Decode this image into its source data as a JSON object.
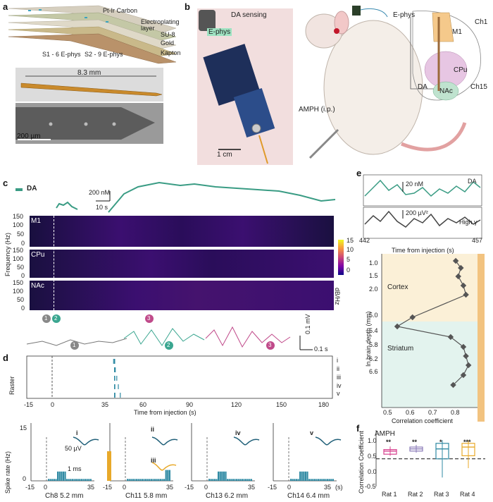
{
  "panel_labels": [
    "a",
    "b",
    "c",
    "d",
    "e",
    "f"
  ],
  "panel_a": {
    "layers": [
      "Pt-Ir Carbon",
      "Electroplating layer",
      "SU-8",
      "Gold",
      "Kapton"
    ],
    "sites": [
      "S1 - 6 E-phys",
      "S2 - 9 E-phys"
    ],
    "length_label": "8.3 mm",
    "scalebar": "200 µm"
  },
  "panel_b": {
    "labels": [
      "DA sensing",
      "E-phys"
    ],
    "scalebar": "1 cm",
    "rat_labels": [
      "E-phys",
      "DA",
      "AMPH (i.p.)"
    ],
    "regions": [
      "M1",
      "CPu",
      "NAc"
    ],
    "channels": [
      "Ch1",
      "Ch15"
    ]
  },
  "panel_c": {
    "legend": "DA",
    "scale_da": "200 nM",
    "scale_time": "10 s",
    "ylabel": "Frequency (Hz)",
    "yticks": [
      "150",
      "100",
      "50",
      "0"
    ],
    "regions": [
      "M1",
      "CPu",
      "NAc"
    ],
    "colorbar_ticks": [
      "15",
      "10",
      "5",
      "0"
    ],
    "colorbar_label": "dB/Hz",
    "markers": [
      "1",
      "2",
      "3"
    ],
    "scale_mv": "0.1 mV",
    "scale_s": "0.1 s"
  },
  "panel_d": {
    "ylabel": "Raster",
    "rows": [
      "i",
      "ii",
      "iii",
      "iv",
      "v"
    ],
    "xticks": [
      "-15",
      "0",
      "35",
      "60",
      "90",
      "120",
      "150",
      "180"
    ],
    "xlabel": "Time from injection (s)",
    "sr_ylabel": "Spike rate (Hz)",
    "sr_yticks": [
      "15",
      "0"
    ],
    "waveform_scale": [
      "50 µV",
      "1 ms"
    ],
    "subplots": [
      {
        "label": "Ch8 5.2 mm",
        "units": [
          "i"
        ]
      },
      {
        "label": "Ch11 5.8 mm",
        "units": [
          "ii",
          "iii"
        ]
      },
      {
        "label": "Ch13 6.2 mm",
        "units": [
          "iv"
        ]
      },
      {
        "label": "Ch14 6.4 mm",
        "units": [
          "v"
        ]
      }
    ],
    "sub_xticks": [
      "-15",
      "0",
      "35"
    ],
    "sub_xunit": "(s)"
  },
  "panel_e": {
    "top_labels": [
      "DA",
      "High γ"
    ],
    "scales": [
      "20 nM",
      "200 µV²"
    ],
    "xticks": [
      "442",
      "457"
    ],
    "xlabel": "Time from injection (s)",
    "ylabel": "In brain depth (mm)",
    "yticks": [
      "1.0",
      "1.5",
      "2.0",
      "5.0",
      "5.4",
      "5.8",
      "6.2",
      "6.6"
    ],
    "xticks_corr": [
      "0.5",
      "0.6",
      "0.7",
      "0.8"
    ],
    "xlabel_corr": "Correlation coefficient",
    "regions": [
      "Cortex",
      "Striatum"
    ],
    "depth_points": [
      {
        "depth": "1.0",
        "r": 0.76
      },
      {
        "depth": "1.25",
        "r": 0.78
      },
      {
        "depth": "1.5",
        "r": 0.77
      },
      {
        "depth": "1.75",
        "r": 0.79
      },
      {
        "depth": "2.0",
        "r": 0.8
      },
      {
        "depth": "5.0",
        "r": 0.59
      },
      {
        "depth": "5.2",
        "r": 0.53
      },
      {
        "depth": "5.4",
        "r": 0.74
      },
      {
        "depth": "5.8",
        "r": 0.79
      },
      {
        "depth": "6.0",
        "r": 0.8
      },
      {
        "depth": "6.2",
        "r": 0.81
      },
      {
        "depth": "6.4",
        "r": 0.79
      },
      {
        "depth": "6.6",
        "r": 0.75
      }
    ]
  },
  "panel_f": {
    "title": "AMPH",
    "ylabel": "Correlation Coefficient",
    "yticks": [
      "1.0",
      "0.5",
      "0.0",
      "-0.5"
    ],
    "categories": [
      "Rat 1",
      "Rat 2",
      "Rat 3",
      "Rat 4"
    ],
    "significance": [
      "**",
      "**",
      "*",
      "***"
    ],
    "colors": [
      "#d7428f",
      "#8a7bb8",
      "#2f8aa3",
      "#e8a92a"
    ],
    "threshold": 0.3
  }
}
